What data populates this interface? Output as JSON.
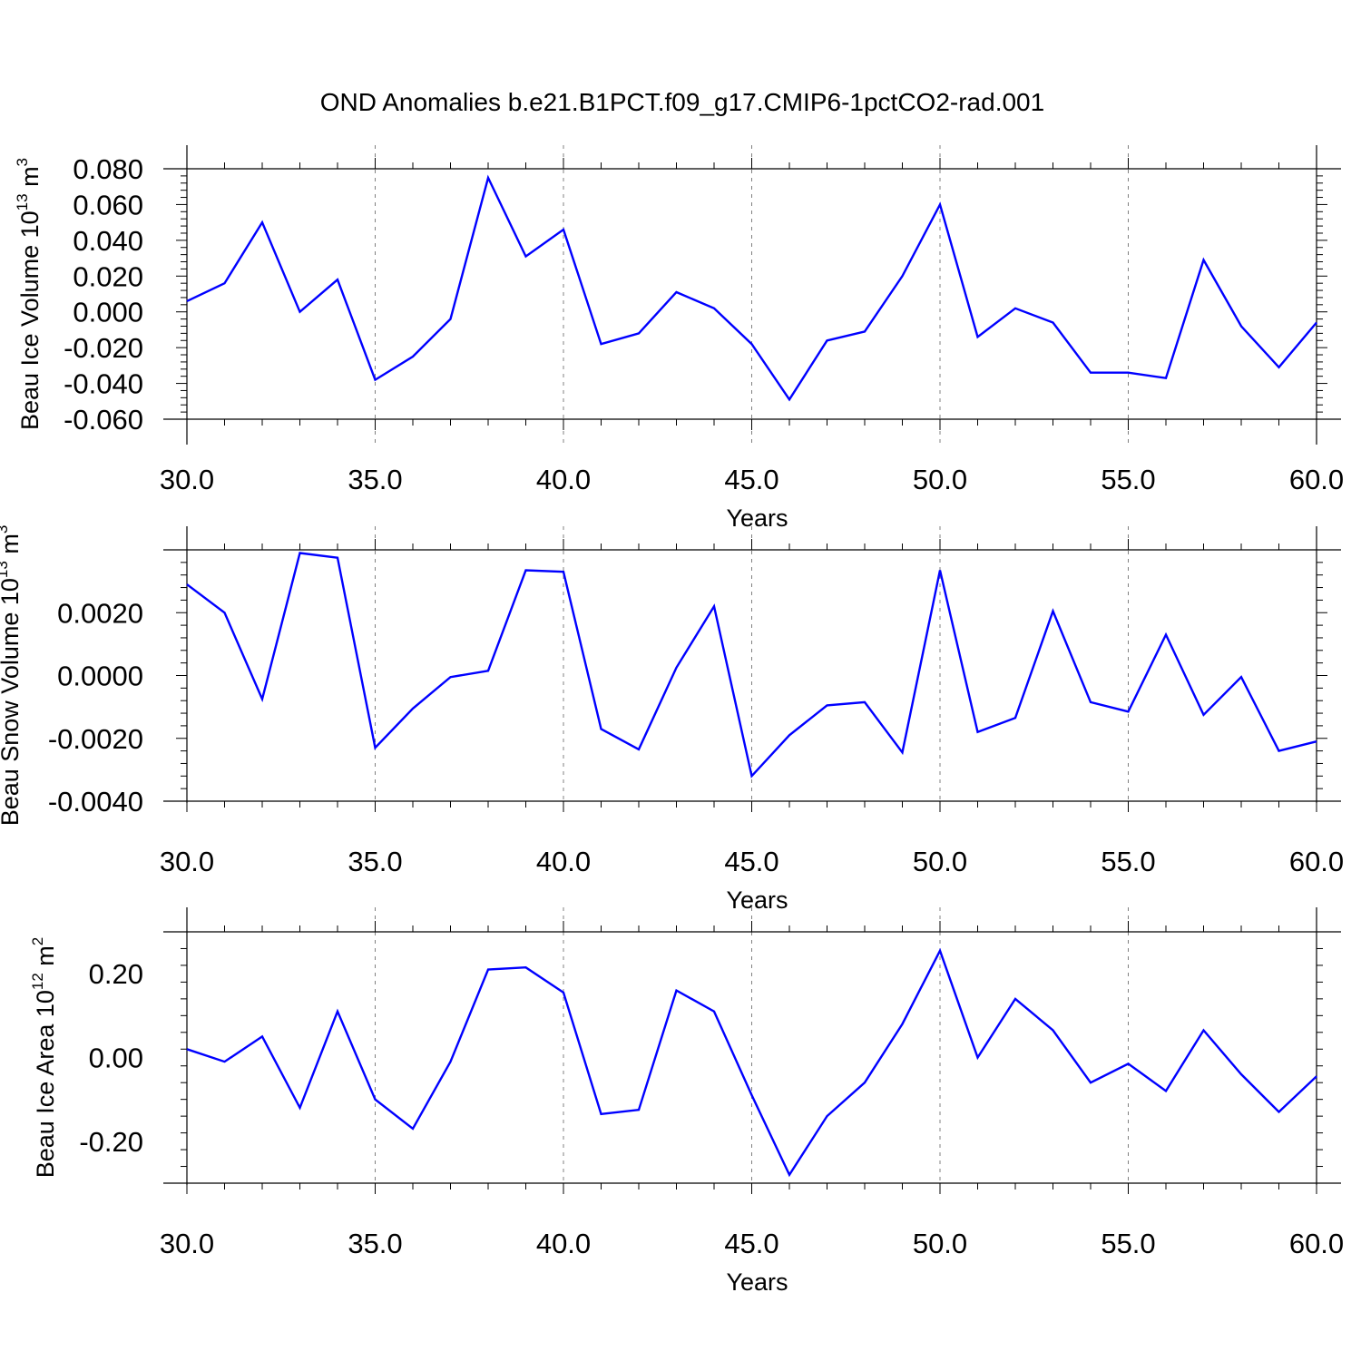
{
  "title": "OND Anomalies b.e21.B1PCT.f09_g17.CMIP6-1pctCO2-rad.001",
  "colors": {
    "line": "#0000ff",
    "axis": "#000000",
    "grid": "#808080",
    "background": "#ffffff"
  },
  "chart_data": [
    {
      "type": "line",
      "xlabel": "Years",
      "ylabel": {
        "text": "Beau Ice Volume 10",
        "exponent": "13",
        "unit": " m",
        "unit_exponent": "3"
      },
      "xlim": [
        30,
        60
      ],
      "ylim": [
        -0.06,
        0.08
      ],
      "xticks": [
        30,
        35,
        40,
        45,
        50,
        55,
        60
      ],
      "xtick_labels": [
        "30.0",
        "35.0",
        "40.0",
        "45.0",
        "50.0",
        "55.0",
        "60.0"
      ],
      "yticks": [
        -0.06,
        -0.04,
        -0.02,
        0.0,
        0.02,
        0.04,
        0.06,
        0.08
      ],
      "ytick_labels": [
        "-0.060",
        "-0.040",
        "-0.020",
        "0.000",
        "0.020",
        "0.040",
        "0.060",
        "0.080"
      ],
      "grid": "dashed vertical lines at major x ticks",
      "x": [
        30,
        31,
        32,
        33,
        34,
        35,
        36,
        37,
        38,
        39,
        40,
        41,
        42,
        43,
        44,
        45,
        46,
        47,
        48,
        49,
        50,
        51,
        52,
        53,
        54,
        55,
        56,
        57,
        58,
        59,
        60
      ],
      "series": [
        {
          "values": [
            0.006,
            0.016,
            0.05,
            0.0,
            0.018,
            -0.038,
            -0.025,
            -0.004,
            0.075,
            0.031,
            0.046,
            -0.018,
            -0.012,
            0.011,
            0.002,
            -0.018,
            -0.049,
            -0.016,
            -0.011,
            0.02,
            0.06,
            -0.014,
            0.002,
            -0.006,
            -0.034,
            -0.034,
            -0.037,
            0.029,
            -0.008,
            -0.031,
            -0.006
          ]
        }
      ]
    },
    {
      "type": "line",
      "xlabel": "Years",
      "ylabel": {
        "text": "Beau Snow Volume 10",
        "exponent": "13",
        "unit": " m",
        "unit_exponent": "3"
      },
      "xlim": [
        30,
        60
      ],
      "ylim": [
        -0.004,
        0.004
      ],
      "xticks": [
        30,
        35,
        40,
        45,
        50,
        55,
        60
      ],
      "xtick_labels": [
        "30.0",
        "35.0",
        "40.0",
        "45.0",
        "50.0",
        "55.0",
        "60.0"
      ],
      "yticks": [
        -0.004,
        -0.002,
        0.0,
        0.002
      ],
      "ytick_labels": [
        "-0.0040",
        "-0.0020",
        "0.0000",
        "0.0020"
      ],
      "grid": "dashed vertical lines at major x ticks",
      "x": [
        30,
        31,
        32,
        33,
        34,
        35,
        36,
        37,
        38,
        39,
        40,
        41,
        42,
        43,
        44,
        45,
        46,
        47,
        48,
        49,
        50,
        51,
        52,
        53,
        54,
        55,
        56,
        57,
        58,
        59,
        60
      ],
      "series": [
        {
          "values": [
            0.0029,
            0.002,
            -0.00075,
            0.0039,
            0.00375,
            -0.0023,
            -0.00105,
            -5e-05,
            0.00015,
            0.00335,
            0.0033,
            -0.0017,
            -0.00235,
            0.00025,
            0.0022,
            -0.0032,
            -0.0019,
            -0.00095,
            -0.00085,
            -0.00245,
            0.00335,
            -0.0018,
            -0.00135,
            0.00205,
            -0.00085,
            -0.00115,
            0.0013,
            -0.00125,
            -5e-05,
            -0.0024,
            -0.0021
          ]
        }
      ]
    },
    {
      "type": "line",
      "xlabel": "Years",
      "ylabel": {
        "text": "Beau Ice Area 10",
        "exponent": "12",
        "unit": " m",
        "unit_exponent": "2"
      },
      "xlim": [
        30,
        60
      ],
      "ylim": [
        -0.3,
        0.3
      ],
      "xticks": [
        30,
        35,
        40,
        45,
        50,
        55,
        60
      ],
      "xtick_labels": [
        "30.0",
        "35.0",
        "40.0",
        "45.0",
        "50.0",
        "55.0",
        "60.0"
      ],
      "yticks": [
        -0.2,
        0.0,
        0.2
      ],
      "ytick_labels": [
        "-0.20",
        "0.00",
        "0.20"
      ],
      "grid": "dashed vertical lines at major x ticks",
      "x": [
        30,
        31,
        32,
        33,
        34,
        35,
        36,
        37,
        38,
        39,
        40,
        41,
        42,
        43,
        44,
        45,
        46,
        47,
        48,
        49,
        50,
        51,
        52,
        53,
        54,
        55,
        56,
        57,
        58,
        59,
        60
      ],
      "series": [
        {
          "values": [
            0.02,
            -0.01,
            0.05,
            -0.12,
            0.11,
            -0.1,
            -0.17,
            -0.01,
            0.21,
            0.215,
            0.155,
            -0.135,
            -0.125,
            0.16,
            0.11,
            -0.09,
            -0.28,
            -0.14,
            -0.06,
            0.08,
            0.255,
            0.0,
            0.14,
            0.065,
            -0.06,
            -0.015,
            -0.08,
            0.065,
            -0.04,
            -0.13,
            -0.045
          ]
        }
      ]
    }
  ]
}
